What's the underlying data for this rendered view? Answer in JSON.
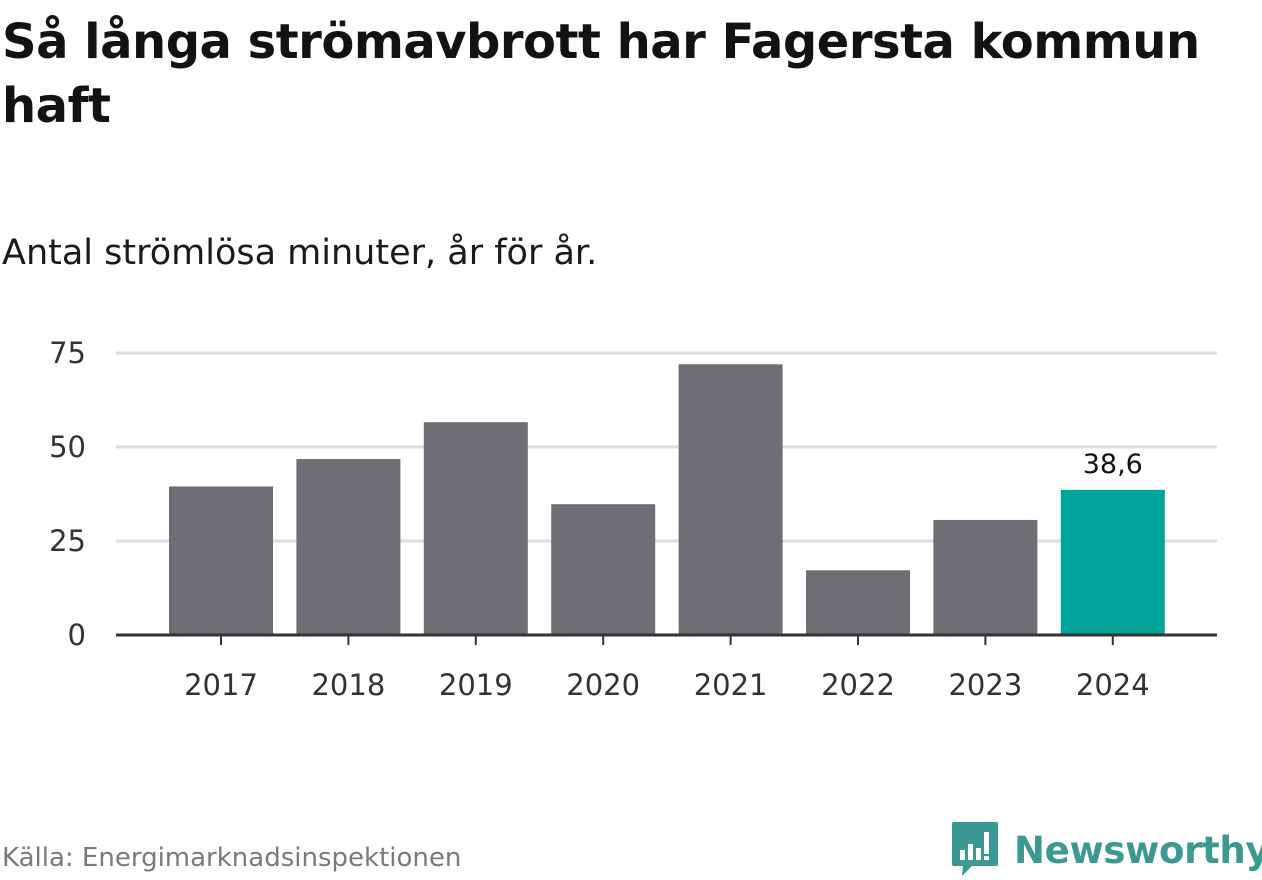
{
  "title": "Så långa strömavbrott har Fagersta kommun haft",
  "subtitle": "Antal strömlösa minuter, år för år.",
  "source": "Källa: Energimarknadsinspektionen",
  "brand": {
    "name": "Newsworthy",
    "icon": "newsworthy-logo-icon",
    "color": "#3a9a93"
  },
  "colors": {
    "bar": "#6f6e74",
    "highlight": "#00a39a",
    "grid": "#dddddd",
    "axis": "#333333"
  },
  "chart_data": {
    "type": "bar",
    "title": "Så långa strömavbrott har Fagersta kommun haft",
    "subtitle": "Antal strömlösa minuter, år för år.",
    "xlabel": "",
    "ylabel": "",
    "categories": [
      "2017",
      "2018",
      "2019",
      "2020",
      "2021",
      "2022",
      "2023",
      "2024"
    ],
    "values": [
      39.5,
      46.8,
      56.6,
      34.8,
      72.0,
      17.2,
      30.6,
      38.6
    ],
    "ylim": [
      0,
      75
    ],
    "yticks": [
      0,
      25,
      50,
      75
    ],
    "grid": true,
    "highlight_index": 7,
    "annotations": [
      {
        "category": "2024",
        "text": "38,6"
      }
    ]
  }
}
